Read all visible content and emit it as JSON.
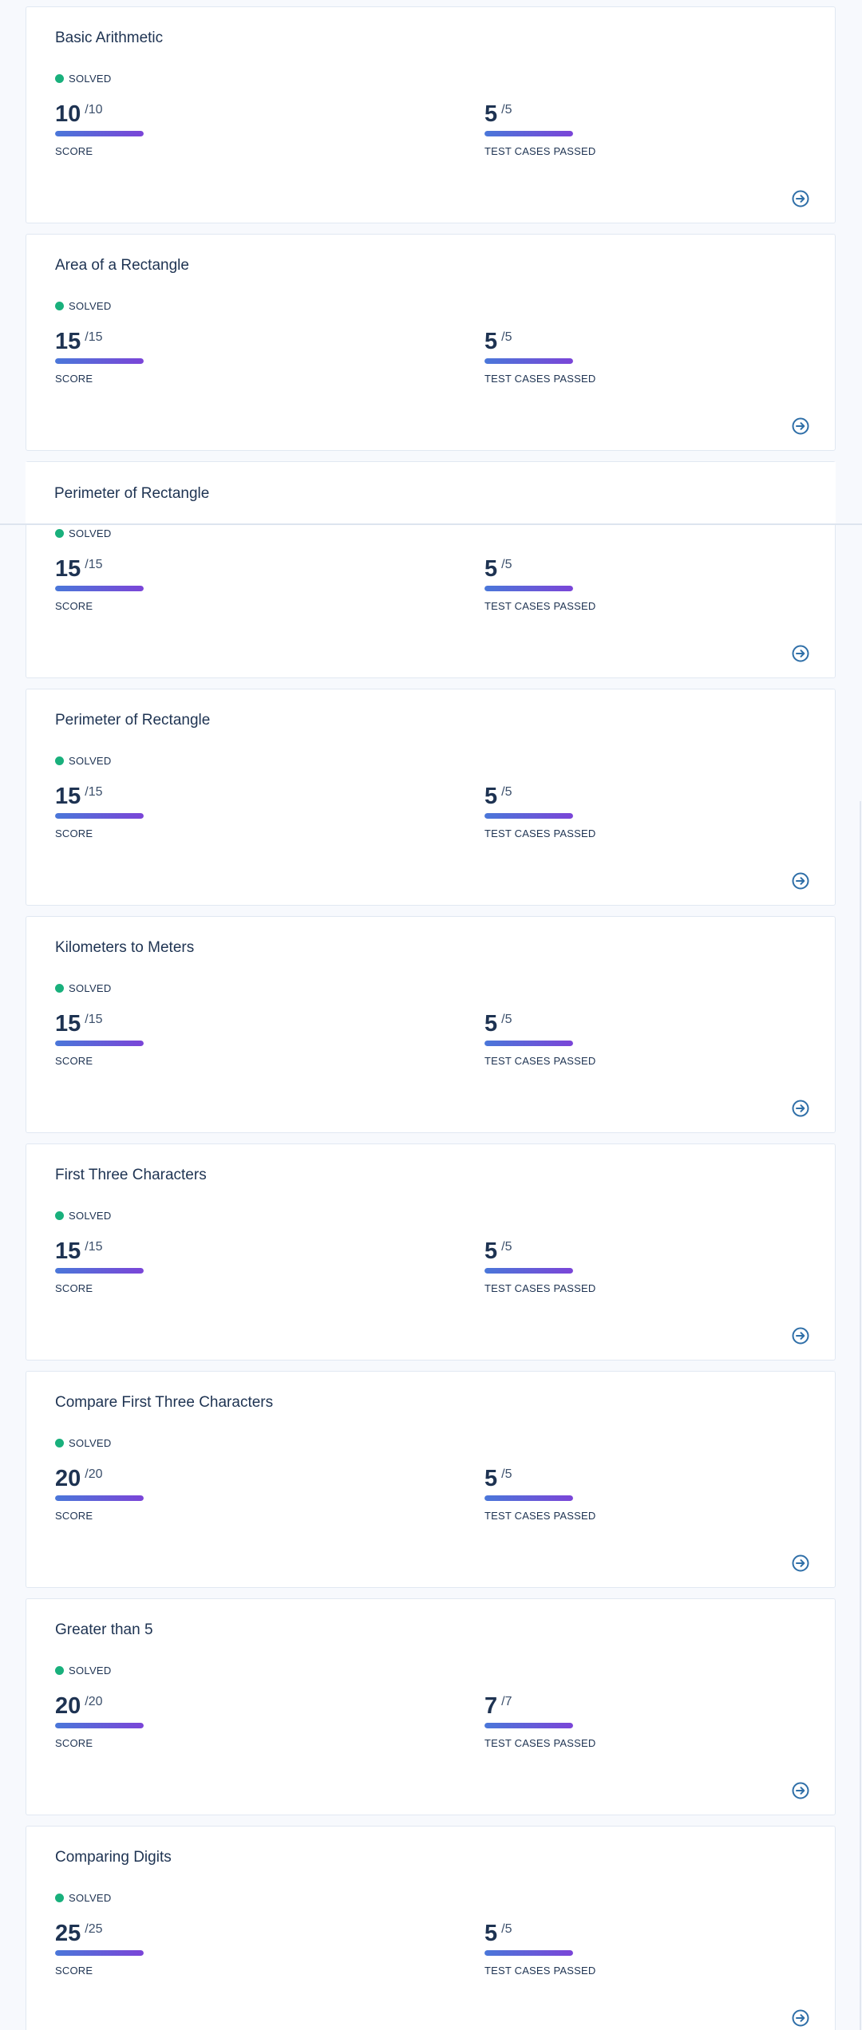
{
  "colors": {
    "solved_dot": "#19b07c",
    "arrow": "#2f6fa8"
  },
  "cards": [
    {
      "title": "Basic Arithmetic",
      "status": "SOLVED",
      "score": {
        "value": "10",
        "total": "/10",
        "label": "SCORE"
      },
      "tests": {
        "value": "5",
        "total": "/5",
        "label": "TEST CASES PASSED"
      },
      "action_icon": "arrow-right-circle-icon"
    },
    {
      "title": "Area of a Rectangle",
      "status": "SOLVED",
      "score": {
        "value": "15",
        "total": "/15",
        "label": "SCORE"
      },
      "tests": {
        "value": "5",
        "total": "/5",
        "label": "TEST CASES PASSED"
      },
      "action_icon": "arrow-right-circle-icon"
    },
    {
      "title": "Perimeter of Rectangle",
      "status": "SOLVED",
      "score": {
        "value": "15",
        "total": "/15",
        "label": "SCORE"
      },
      "tests": {
        "value": "5",
        "total": "/5",
        "label": "TEST CASES PASSED"
      },
      "action_icon": "arrow-right-circle-icon"
    },
    {
      "title": "Perimeter of Rectangle",
      "status": "SOLVED",
      "score": {
        "value": "15",
        "total": "/15",
        "label": "SCORE"
      },
      "tests": {
        "value": "5",
        "total": "/5",
        "label": "TEST CASES PASSED"
      },
      "action_icon": "arrow-right-circle-icon"
    },
    {
      "title": "Kilometers to Meters",
      "status": "SOLVED",
      "score": {
        "value": "15",
        "total": "/15",
        "label": "SCORE"
      },
      "tests": {
        "value": "5",
        "total": "/5",
        "label": "TEST CASES PASSED"
      },
      "action_icon": "arrow-right-circle-icon"
    },
    {
      "title": "First Three Characters",
      "status": "SOLVED",
      "score": {
        "value": "15",
        "total": "/15",
        "label": "SCORE"
      },
      "tests": {
        "value": "5",
        "total": "/5",
        "label": "TEST CASES PASSED"
      },
      "action_icon": "arrow-right-circle-icon"
    },
    {
      "title": "Compare First Three Characters",
      "status": "SOLVED",
      "score": {
        "value": "20",
        "total": "/20",
        "label": "SCORE"
      },
      "tests": {
        "value": "5",
        "total": "/5",
        "label": "TEST CASES PASSED"
      },
      "action_icon": "arrow-right-circle-icon"
    },
    {
      "title": "Greater than 5",
      "status": "SOLVED",
      "score": {
        "value": "20",
        "total": "/20",
        "label": "SCORE"
      },
      "tests": {
        "value": "7",
        "total": "/7",
        "label": "TEST CASES PASSED"
      },
      "action_icon": "arrow-right-circle-icon"
    },
    {
      "title": "Comparing Digits",
      "status": "SOLVED",
      "score": {
        "value": "25",
        "total": "/25",
        "label": "SCORE"
      },
      "tests": {
        "value": "5",
        "total": "/5",
        "label": "TEST CASES PASSED"
      },
      "action_icon": "arrow-right-circle-icon"
    }
  ]
}
